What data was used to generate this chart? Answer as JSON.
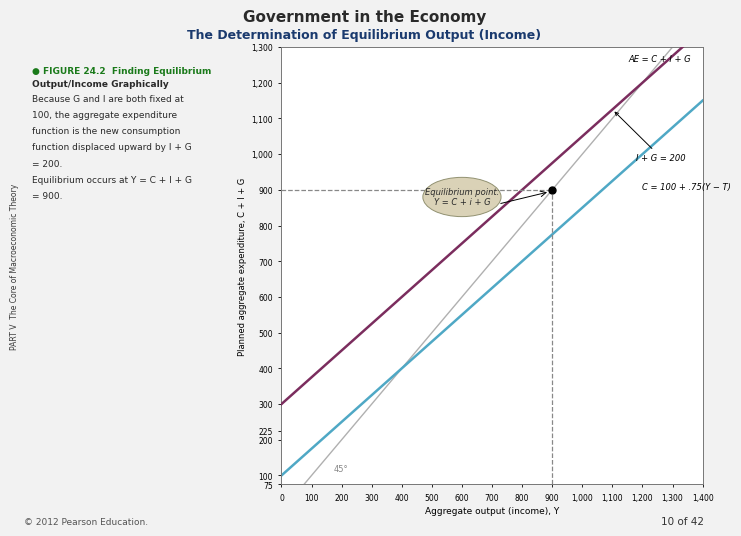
{
  "title": "Government in the Economy",
  "subtitle": "The Determination of Equilibrium Output (Income)",
  "figure_label_green": "● FIGURE 24.2  Finding Equilibrium",
  "figure_label_bold": "Output/Income Graphically",
  "desc_lines": [
    "Because G and I are both fixed at",
    "100, the aggregate expenditure",
    "function is the new consumption",
    "function displaced upward by I + G",
    "= 200.",
    "Equilibrium occurs at Y = C + I + G",
    "= 900."
  ],
  "xlabel": "Aggregate output (income), Y",
  "ylabel": "Planned aggregate expenditure, C + I + G",
  "xmin": 0,
  "xmax": 1400,
  "ymin": 75,
  "ymax": 1300,
  "xticks": [
    0,
    100,
    200,
    300,
    400,
    500,
    600,
    700,
    800,
    900,
    1000,
    1100,
    1200,
    1300,
    1400
  ],
  "yticks": [
    75,
    100,
    200,
    225,
    300,
    400,
    500,
    600,
    700,
    800,
    900,
    1000,
    1100,
    1200,
    1300
  ],
  "consumption_intercept": 100,
  "consumption_slope": 0.75,
  "I_plus_G": 200,
  "equilibrium_x": 900,
  "equilibrium_y": 900,
  "line45_color": "#b0b0b0",
  "consumption_color": "#4fa8c5",
  "ae_color": "#7b2d5e",
  "dashed_color": "#888888",
  "background_color": "#f2f2f2",
  "chart_bg": "#ffffff",
  "annotation_bubble_color": "#d6cdb0",
  "annotation_bubble_text": "Equilibrium point:\nY = C + i + G",
  "label_ae": "AE = C + I + G",
  "label_ig": "I + G = 200",
  "label_c": "C = 100 + .75(Y − T)",
  "label_45": "45°",
  "part_label": "PART V  The Core of Macroeconomic Theory",
  "copyright": "© 2012 Pearson Education.",
  "page_label": "10 of 42",
  "title_color": "#2a2a2a",
  "subtitle_color": "#1a3a6e"
}
